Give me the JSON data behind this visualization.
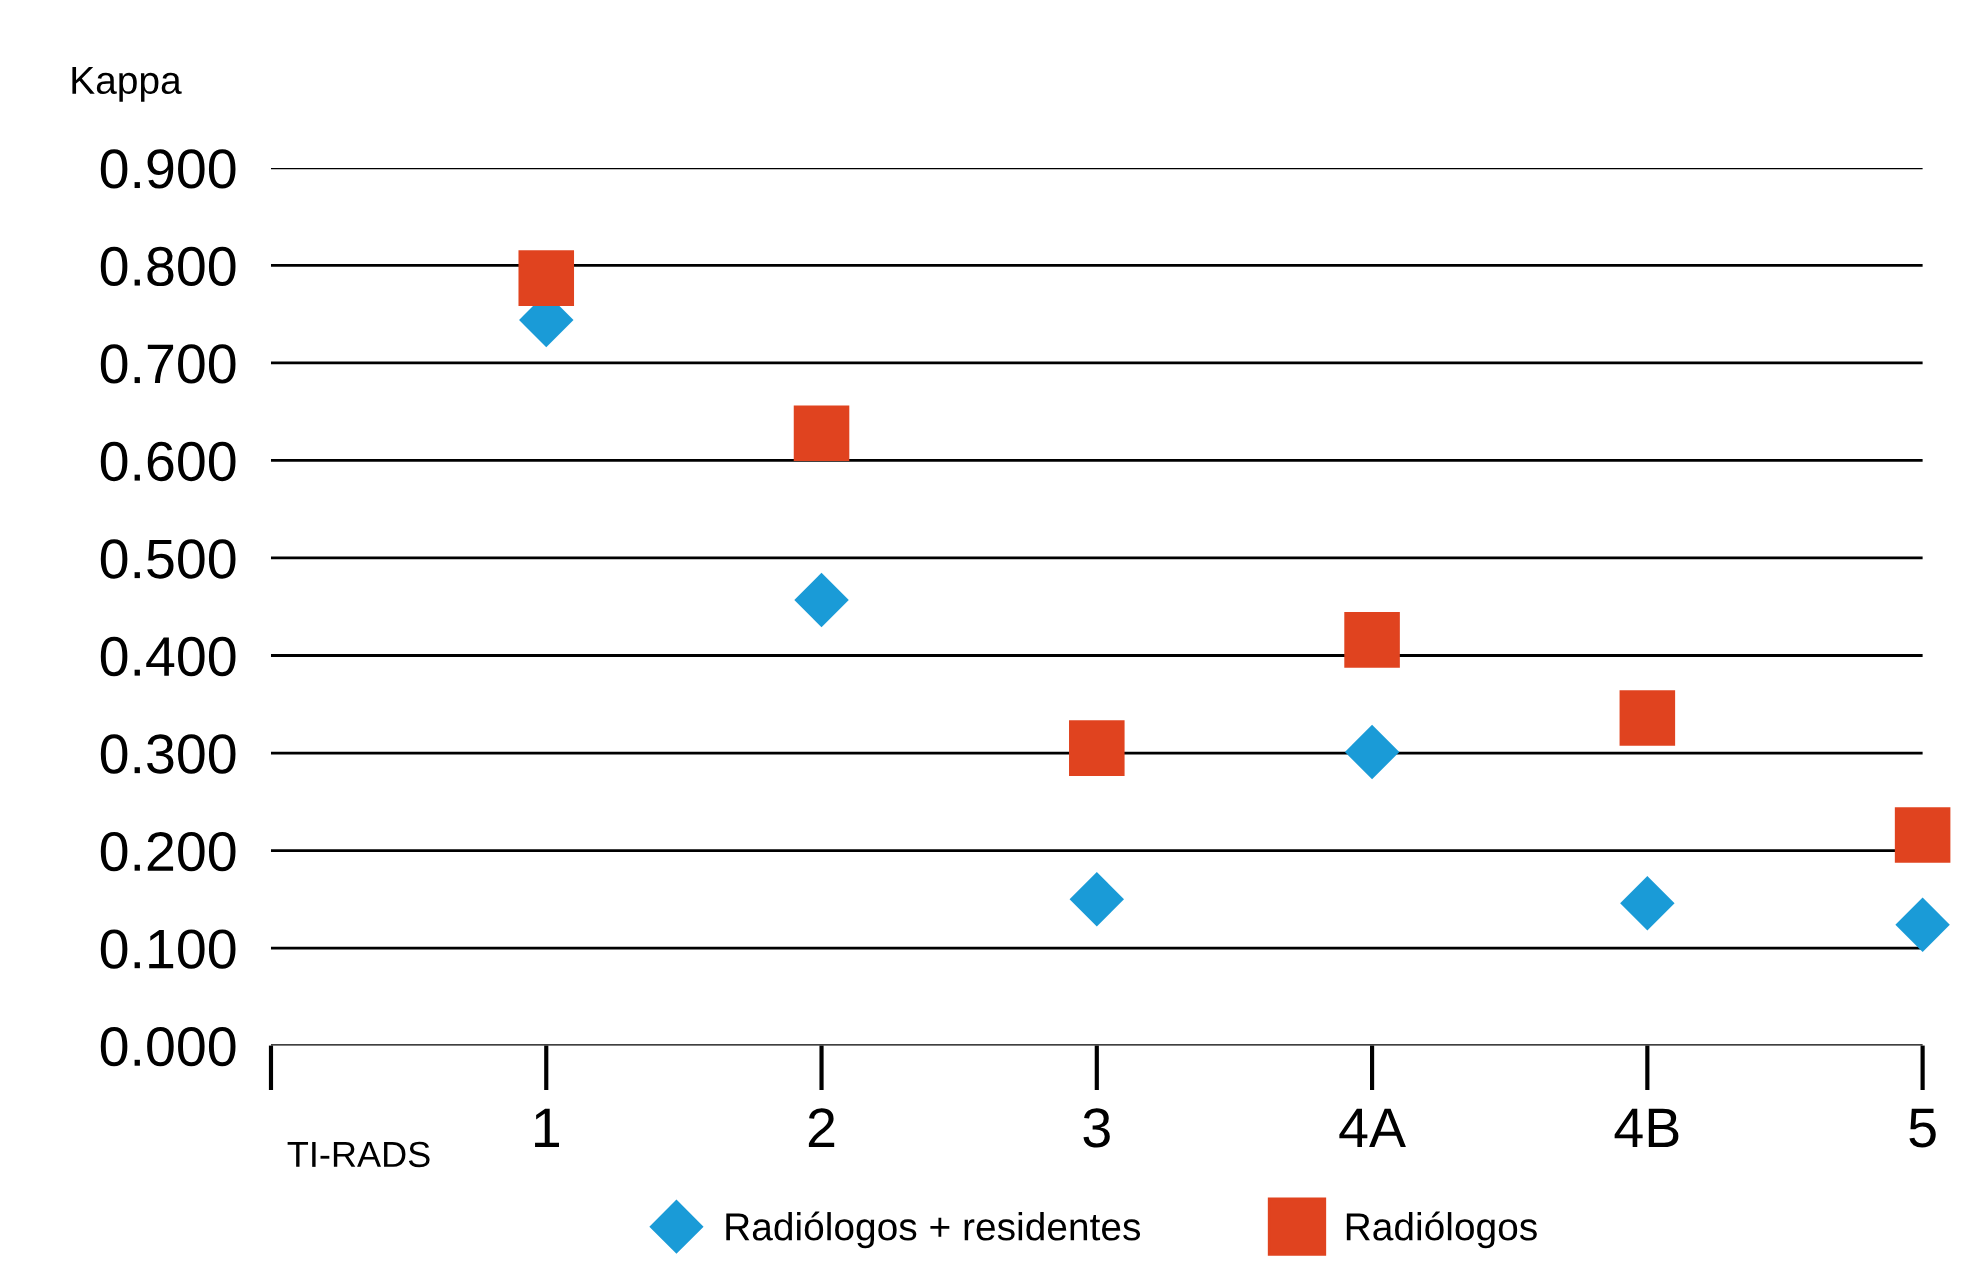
{
  "chart_data": {
    "type": "scatter",
    "ylabel": "Kappa",
    "xlabel": "TI-RADS",
    "categories": [
      "1",
      "2",
      "3",
      "4A",
      "4B",
      "5"
    ],
    "series": [
      {
        "name": "Radiólogos + residentes",
        "color": "#1a9bd7",
        "marker": "diamond",
        "values": [
          0.744,
          0.457,
          0.15,
          0.301,
          0.146,
          0.124
        ]
      },
      {
        "name": "Radiólogos",
        "color": "#e0431f",
        "marker": "square",
        "values": [
          0.787,
          0.628,
          0.305,
          0.416,
          0.336,
          0.216
        ]
      }
    ],
    "ylim": [
      0,
      0.9
    ],
    "yticks": [
      {
        "value": 0,
        "label": "0.000"
      },
      {
        "value": 0.1,
        "label": "0.100"
      },
      {
        "value": 0.2,
        "label": "0.200"
      },
      {
        "value": 0.3,
        "label": "0.300"
      },
      {
        "value": 0.4,
        "label": "0.400"
      },
      {
        "value": 0.5,
        "label": "0.500"
      },
      {
        "value": 0.6,
        "label": "0.600"
      },
      {
        "value": 0.7,
        "label": "0.700"
      },
      {
        "value": 0.8,
        "label": "0.800"
      },
      {
        "value": 0.9,
        "label": "0.900"
      }
    ],
    "grid": "y",
    "legend": "bottom"
  }
}
